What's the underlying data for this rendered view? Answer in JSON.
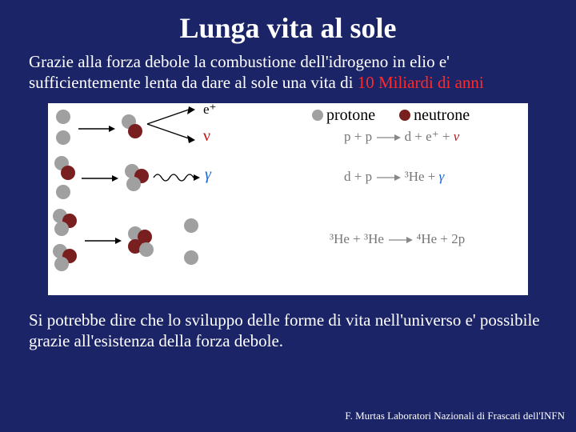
{
  "colors": {
    "background": "#1b2466",
    "title": "#ffffff",
    "body_text": "#ffffff",
    "highlight": "#ff2a2a",
    "diagram_bg": "#ffffff",
    "proton": "#a0a0a0",
    "neutron": "#7a1f1f",
    "positron_label": "#000000",
    "nu_label": "#c01414",
    "gamma_label": "#1a66d0",
    "eq_text": "#888888",
    "footer": "#ffffff"
  },
  "title": "Lunga vita al sole",
  "intro": {
    "line1": "Grazie alla forza debole la combustione dell'idrogeno in elio e' sufficientemente lenta da dare al sole una vita di ",
    "highlight": "10 Miliardi di anni"
  },
  "legend": {
    "proton": "protone",
    "neutron": "neutrone"
  },
  "labels": {
    "positron": "e⁺",
    "nu": "ν",
    "gamma": "γ"
  },
  "equations": {
    "r1_left": "p + p",
    "r1_right": "d + e⁺  +",
    "r2_left": "d + p",
    "r2_mid": "³He +",
    "r3_left": "³He + ³He",
    "r3_right": "⁴He + 2p"
  },
  "closing": "Si potrebbe dire che lo sviluppo delle forme di vita nell'universo e' possibile grazie all'esistenza della forza debole.",
  "footer": "F. Murtas Laboratori Nazionali di Frascati dell'INFN",
  "style": {
    "particle_radius": 9,
    "particle_small_radius": 7,
    "title_fontsize": 36,
    "body_fontsize": 21,
    "eq_fontsize": 17,
    "footer_fontsize": 13
  }
}
